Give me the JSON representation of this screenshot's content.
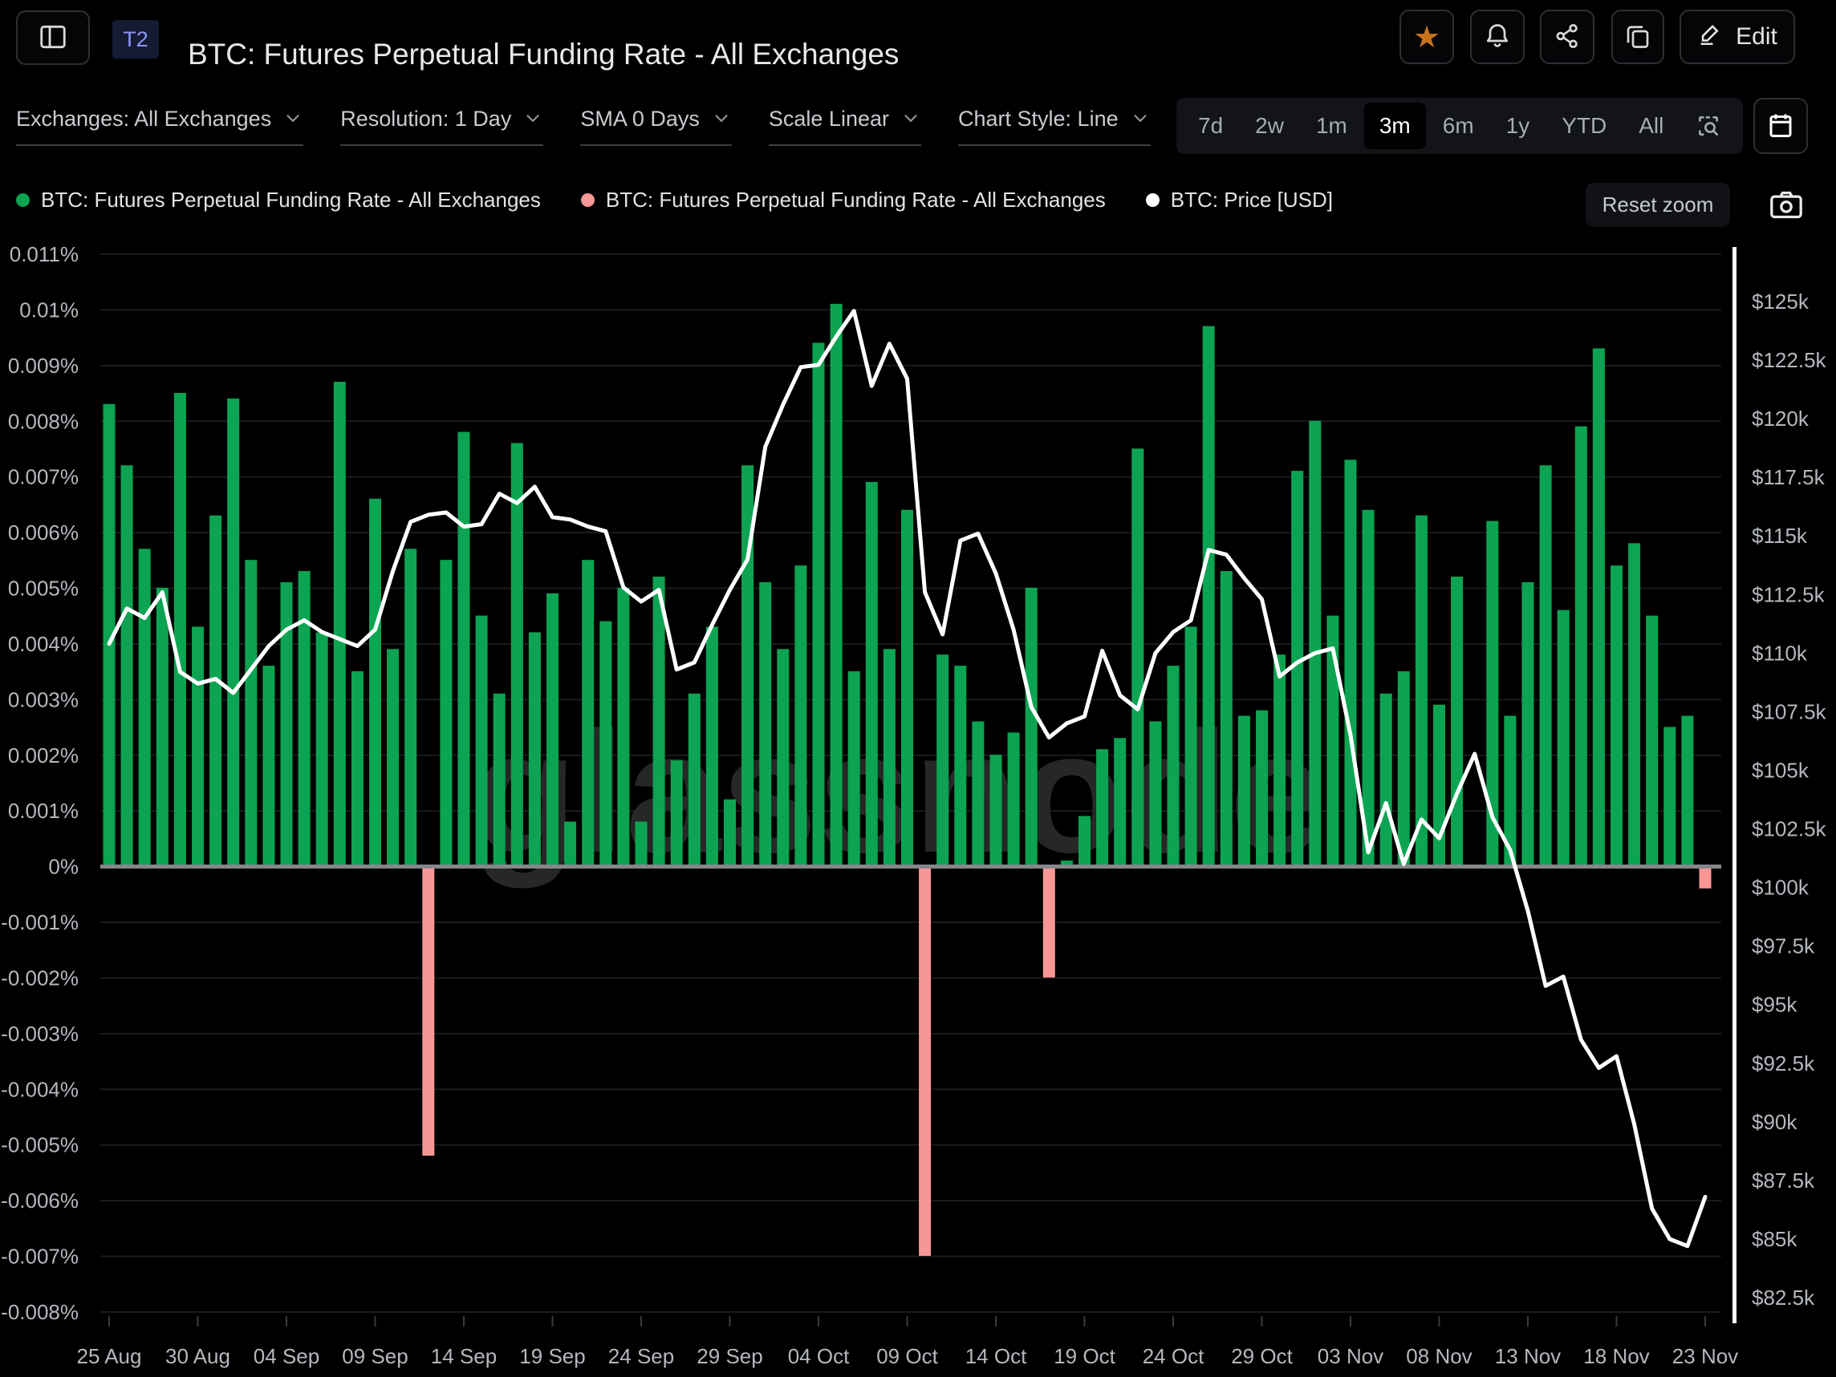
{
  "header": {
    "badge": "T2",
    "title": "BTC: Futures Perpetual Funding Rate - All Exchanges",
    "edit_label": "Edit",
    "icons": [
      "sidebar-toggle-icon",
      "favorite-star-icon",
      "bell-icon",
      "share-icon",
      "copy-icon",
      "pencil-icon"
    ]
  },
  "toolbar": {
    "dropdowns": [
      {
        "label": "Exchanges: All Exchanges"
      },
      {
        "label": "Resolution: 1 Day"
      },
      {
        "label": "SMA 0 Days"
      },
      {
        "label": "Scale Linear"
      },
      {
        "label": "Chart Style: Line"
      }
    ],
    "ranges": [
      "7d",
      "2w",
      "1m",
      "3m",
      "6m",
      "1y",
      "YTD",
      "All"
    ],
    "active_range": "3m",
    "extra_icons": [
      "zoom-area-icon",
      "calendar-icon"
    ]
  },
  "legend": [
    {
      "label": "BTC: Futures Perpetual Funding Rate - All Exchanges",
      "color": "#0CA452"
    },
    {
      "label": "BTC: Futures Perpetual Funding Rate - All Exchanges",
      "color": "#F69795"
    },
    {
      "label": "BTC: Price [USD]",
      "color": "#FFFFFF"
    }
  ],
  "chart_controls": {
    "reset_zoom_label": "Reset zoom",
    "camera_icon": "camera-icon"
  },
  "watermark": "glassnode",
  "colors": {
    "background": "#000000",
    "positive_bar": "#0CA452",
    "negative_bar": "#F69795",
    "price_line": "#FFFFFF",
    "gridline": "#1a1b1d",
    "zero_line": "#85878a",
    "tick_text": "#b4b8bf",
    "accent_star": "#c9731f",
    "badge_bg": "#151b33",
    "badge_text": "#8d95f6"
  },
  "chart_data": {
    "type": "bar",
    "title": "BTC: Futures Perpetual Funding Rate - All Exchanges",
    "x": [
      "25 Aug",
      "26 Aug",
      "27 Aug",
      "28 Aug",
      "29 Aug",
      "30 Aug",
      "31 Aug",
      "01 Sep",
      "02 Sep",
      "03 Sep",
      "04 Sep",
      "05 Sep",
      "06 Sep",
      "07 Sep",
      "08 Sep",
      "09 Sep",
      "10 Sep",
      "11 Sep",
      "12 Sep",
      "13 Sep",
      "14 Sep",
      "15 Sep",
      "16 Sep",
      "17 Sep",
      "18 Sep",
      "19 Sep",
      "20 Sep",
      "21 Sep",
      "22 Sep",
      "23 Sep",
      "24 Sep",
      "25 Sep",
      "26 Sep",
      "27 Sep",
      "28 Sep",
      "29 Sep",
      "30 Sep",
      "01 Oct",
      "02 Oct",
      "03 Oct",
      "04 Oct",
      "05 Oct",
      "06 Oct",
      "07 Oct",
      "08 Oct",
      "09 Oct",
      "10 Oct",
      "11 Oct",
      "12 Oct",
      "13 Oct",
      "14 Oct",
      "15 Oct",
      "16 Oct",
      "17 Oct",
      "18 Oct",
      "19 Oct",
      "20 Oct",
      "21 Oct",
      "22 Oct",
      "23 Oct",
      "24 Oct",
      "25 Oct",
      "26 Oct",
      "27 Oct",
      "28 Oct",
      "29 Oct",
      "30 Oct",
      "31 Oct",
      "01 Nov",
      "02 Nov",
      "03 Nov",
      "04 Nov",
      "05 Nov",
      "06 Nov",
      "07 Nov",
      "08 Nov",
      "09 Nov",
      "10 Nov",
      "11 Nov",
      "12 Nov",
      "13 Nov",
      "14 Nov",
      "15 Nov",
      "16 Nov",
      "17 Nov",
      "18 Nov",
      "19 Nov",
      "20 Nov",
      "21 Nov",
      "22 Nov",
      "23 Nov"
    ],
    "series": [
      {
        "name": "BTC: Futures Perpetual Funding Rate - All Exchanges",
        "render": "bar",
        "unit": "%",
        "positive_color": "#0CA452",
        "negative_color": "#F69795",
        "values": [
          0.0083,
          0.0072,
          0.0057,
          0.005,
          0.0085,
          0.0043,
          0.0063,
          0.0084,
          0.0055,
          0.0036,
          0.0051,
          0.0053,
          0.0042,
          0.0087,
          0.0035,
          0.0066,
          0.0039,
          0.0057,
          -0.0052,
          0.0055,
          0.0078,
          0.0045,
          0.0031,
          0.0076,
          0.0042,
          0.0049,
          0.0008,
          0.0055,
          0.0044,
          0.005,
          0.0008,
          0.0052,
          0.0019,
          0.0031,
          0.0043,
          0.0012,
          0.0072,
          0.0051,
          0.0039,
          0.0054,
          0.0094,
          0.0101,
          0.0035,
          0.0069,
          0.0039,
          0.0064,
          -0.007,
          0.0038,
          0.0036,
          0.0026,
          0.002,
          0.0024,
          0.005,
          -0.002,
          0.0001,
          0.0009,
          0.0021,
          0.0023,
          0.0075,
          0.0026,
          0.0036,
          0.0043,
          0.0097,
          0.0053,
          0.0027,
          0.0028,
          0.0038,
          0.0071,
          0.008,
          0.0045,
          0.0073,
          0.0064,
          0.0031,
          0.0035,
          0.0063,
          0.0029,
          0.0052,
          0.0,
          0.0062,
          0.0027,
          0.0051,
          0.0072,
          0.0046,
          0.0079,
          0.0093,
          0.0054,
          0.0058,
          0.0045,
          0.0025,
          0.0027,
          -0.0004
        ]
      },
      {
        "name": "BTC: Price [USD]",
        "render": "line",
        "unit": "USD thousands",
        "color": "#FFFFFF",
        "values": [
          110.4,
          111.9,
          111.5,
          112.6,
          109.2,
          108.7,
          108.9,
          108.3,
          109.3,
          110.3,
          111.0,
          111.4,
          110.9,
          110.6,
          110.3,
          111.0,
          113.5,
          115.6,
          115.9,
          116.0,
          115.4,
          115.5,
          116.8,
          116.4,
          117.1,
          115.8,
          115.7,
          115.4,
          115.2,
          112.8,
          112.2,
          112.7,
          109.3,
          109.6,
          111.2,
          112.7,
          114.0,
          118.8,
          120.6,
          122.2,
          122.3,
          123.5,
          124.6,
          121.4,
          123.2,
          121.7,
          112.6,
          110.8,
          114.8,
          115.1,
          113.4,
          111.0,
          107.7,
          106.4,
          107.0,
          107.3,
          110.1,
          108.2,
          107.6,
          110.0,
          110.9,
          111.4,
          114.4,
          114.2,
          113.2,
          112.3,
          109.0,
          109.6,
          110.0,
          110.2,
          106.5,
          101.5,
          103.6,
          101.0,
          102.9,
          102.1,
          104.0,
          105.7,
          103.0,
          101.6,
          99.0,
          95.8,
          96.2,
          93.5,
          92.3,
          92.8,
          89.9,
          86.3,
          85.0,
          84.7,
          86.8
        ]
      }
    ],
    "left_axis": {
      "unit": "%",
      "max": 0.011,
      "min": -0.008,
      "ticks": [
        "0.011%",
        "0.01%",
        "0.009%",
        "0.008%",
        "0.007%",
        "0.006%",
        "0.005%",
        "0.004%",
        "0.003%",
        "0.002%",
        "0.001%",
        "0%",
        "-0.001%",
        "-0.002%",
        "-0.003%",
        "-0.004%",
        "-0.005%",
        "-0.006%",
        "-0.007%",
        "-0.008%"
      ]
    },
    "right_axis": {
      "unit": "USD",
      "max": 125000,
      "min": 82500,
      "ticks": [
        "$125k",
        "$122.5k",
        "$120k",
        "$117.5k",
        "$115k",
        "$112.5k",
        "$110k",
        "$107.5k",
        "$105k",
        "$102.5k",
        "$100k",
        "$97.5k",
        "$95k",
        "$92.5k",
        "$90k",
        "$87.5k",
        "$85k",
        "$82.5k"
      ]
    },
    "x_tick_labels": [
      "25 Aug",
      "30 Aug",
      "04 Sep",
      "09 Sep",
      "14 Sep",
      "19 Sep",
      "24 Sep",
      "29 Sep",
      "04 Oct",
      "09 Oct",
      "14 Oct",
      "19 Oct",
      "24 Oct",
      "29 Oct",
      "03 Nov",
      "08 Nov",
      "13 Nov",
      "18 Nov",
      "23 Nov"
    ],
    "grid": true,
    "legend_position": "top-left"
  }
}
